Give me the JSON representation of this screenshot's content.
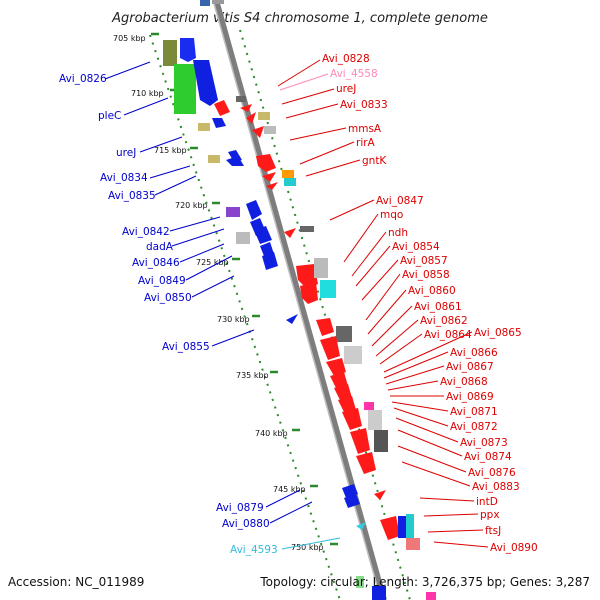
{
  "title": "Agrobacterium vitis S4 chromosome 1, complete genome",
  "accession": "Accession: NC_011989",
  "topology": "Topology: circular; Length: 3,726,375 bp; Genes: 3,287",
  "colors": {
    "forward_gene": "#0a1ff0",
    "reverse_gene": "#ff0f0f",
    "accent_green": "#33cc33",
    "accent_olive": "#7a8a3a",
    "khaki": "#c8b96a",
    "grey_dark": "#555555",
    "grey_light": "#c0c0c0",
    "cyan": "#22dddd",
    "pink": "#ff88bb",
    "orange": "#ff9900",
    "purple": "#8844cc",
    "backbone": "#7d7d7d",
    "tick": "#2c8a2c"
  },
  "scale": [
    {
      "label": "705 kbp",
      "kbp": 705
    },
    {
      "label": "710 kbp",
      "kbp": 710
    },
    {
      "label": "715 kbp",
      "kbp": 715
    },
    {
      "label": "720 kbp",
      "kbp": 720
    },
    {
      "label": "725 kbp",
      "kbp": 725
    },
    {
      "label": "730 kbp",
      "kbp": 730
    },
    {
      "label": "735 kbp",
      "kbp": 735
    },
    {
      "label": "740 kbp",
      "kbp": 740
    },
    {
      "label": "745 kbp",
      "kbp": 745
    },
    {
      "label": "750 kbp",
      "kbp": 750
    }
  ],
  "left_labels": [
    {
      "text": "Avi_0826",
      "color": "#0000cc"
    },
    {
      "text": "pleC",
      "color": "#0000cc"
    },
    {
      "text": "ureJ",
      "color": "#0000cc"
    },
    {
      "text": "Avi_0834",
      "color": "#0000cc"
    },
    {
      "text": "Avi_0835",
      "color": "#0000cc"
    },
    {
      "text": "Avi_0842",
      "color": "#0000cc"
    },
    {
      "text": "dadA",
      "color": "#0000cc"
    },
    {
      "text": "Avi_0846",
      "color": "#0000cc"
    },
    {
      "text": "Avi_0849",
      "color": "#0000cc"
    },
    {
      "text": "Avi_0850",
      "color": "#0000cc"
    },
    {
      "text": "Avi_0855",
      "color": "#0000cc"
    },
    {
      "text": "Avi_0879",
      "color": "#0000cc"
    },
    {
      "text": "Avi_0880",
      "color": "#0000cc"
    },
    {
      "text": "Avi_4593",
      "color": "#33bbdd"
    }
  ],
  "right_labels": [
    {
      "text": "Avi_0828",
      "color": "#dd0000"
    },
    {
      "text": "Avi_4558",
      "color": "#ff88bb"
    },
    {
      "text": "ureJ",
      "color": "#dd0000"
    },
    {
      "text": "Avi_0833",
      "color": "#dd0000"
    },
    {
      "text": "mmsA",
      "color": "#dd0000"
    },
    {
      "text": "rirA",
      "color": "#dd0000"
    },
    {
      "text": "gntK",
      "color": "#dd0000"
    },
    {
      "text": "Avi_0847",
      "color": "#dd0000"
    },
    {
      "text": "mqo",
      "color": "#dd0000"
    },
    {
      "text": "ndh",
      "color": "#dd0000"
    },
    {
      "text": "Avi_0854",
      "color": "#dd0000"
    },
    {
      "text": "Avi_0857",
      "color": "#dd0000"
    },
    {
      "text": "Avi_0858",
      "color": "#dd0000"
    },
    {
      "text": "Avi_0860",
      "color": "#dd0000"
    },
    {
      "text": "Avi_0861",
      "color": "#dd0000"
    },
    {
      "text": "Avi_0862",
      "color": "#dd0000"
    },
    {
      "text": "Avi_0864",
      "color": "#dd0000"
    },
    {
      "text": "Avi_0865",
      "color": "#dd0000"
    },
    {
      "text": "Avi_0866",
      "color": "#dd0000"
    },
    {
      "text": "Avi_0867",
      "color": "#dd0000"
    },
    {
      "text": "Avi_0868",
      "color": "#dd0000"
    },
    {
      "text": "Avi_0869",
      "color": "#dd0000"
    },
    {
      "text": "Avi_0871",
      "color": "#dd0000"
    },
    {
      "text": "Avi_0872",
      "color": "#dd0000"
    },
    {
      "text": "Avi_0873",
      "color": "#dd0000"
    },
    {
      "text": "Avi_0874",
      "color": "#dd0000"
    },
    {
      "text": "Avi_0876",
      "color": "#dd0000"
    },
    {
      "text": "Avi_0883",
      "color": "#dd0000"
    },
    {
      "text": "intD",
      "color": "#dd0000"
    },
    {
      "text": "ppx",
      "color": "#dd0000"
    },
    {
      "text": "ftsJ",
      "color": "#dd0000"
    },
    {
      "text": "Avi_0890",
      "color": "#dd0000"
    }
  ]
}
